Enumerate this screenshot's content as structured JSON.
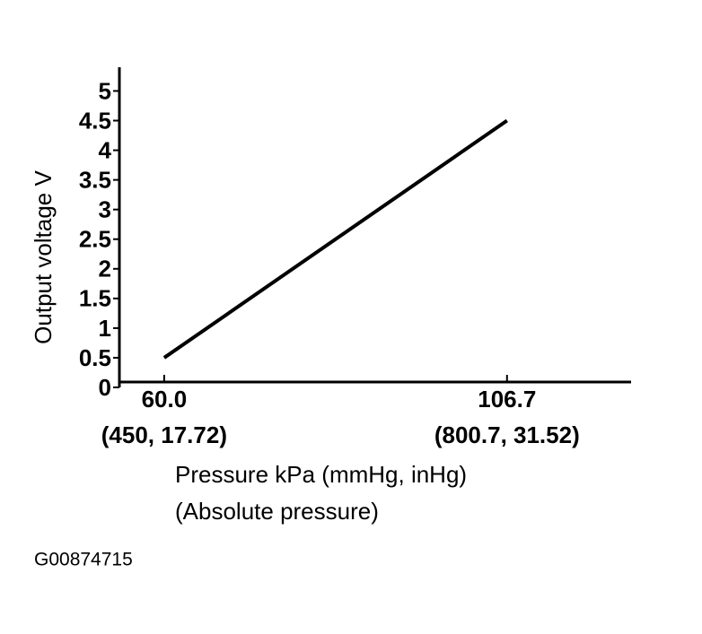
{
  "chart_data": {
    "type": "line",
    "ylabel": "Output voltage V",
    "xlabel": [
      "Pressure kPa (mmHg, inHg)",
      "(Absolute pressure)"
    ],
    "x": [
      60,
      106.7
    ],
    "values": [
      0.5,
      4.5
    ],
    "color": "#000000",
    "xlim": [
      53.9,
      123.6
    ],
    "ylim": [
      0,
      5.4
    ],
    "xticks": [
      {
        "value": 60,
        "label": "60.0"
      },
      {
        "value": 106.7,
        "label": "106.7"
      }
    ],
    "xtick_sublabels": [
      "(450, 17.72)",
      "(800.7, 31.52)"
    ],
    "yticks": [
      0,
      0.5,
      1,
      1.5,
      2,
      2.5,
      3,
      3.5,
      4,
      4.5,
      5
    ],
    "grid": false
  },
  "figure_code": "G00874715"
}
